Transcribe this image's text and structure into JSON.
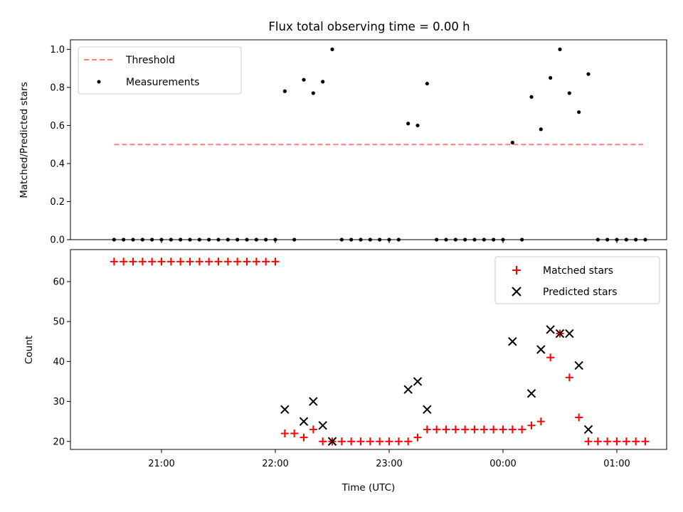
{
  "chart_data": {
    "type": "scatter",
    "title": "Flux total observing time = 0.00 h",
    "xlabel": "Time (UTC)",
    "x_tick_labels": [
      "21:00",
      "22:00",
      "23:00",
      "00:00",
      "01:00"
    ],
    "top": {
      "ylabel": "Matched/Predicted stars",
      "ylim": [
        0,
        1.05
      ],
      "y_tick_labels": [
        "0.0",
        "0.2",
        "0.4",
        "0.6",
        "0.8",
        "1.0"
      ],
      "legend_position": "upper-left",
      "threshold": {
        "name": "Threshold",
        "value": 0.5,
        "color": "#ff7f7f"
      },
      "measurements": {
        "name": "Measurements",
        "color": "#000000",
        "points": [
          [
            "20:35",
            0
          ],
          [
            "20:40",
            0
          ],
          [
            "20:45",
            0
          ],
          [
            "20:50",
            0
          ],
          [
            "20:55",
            0
          ],
          [
            "21:00",
            0
          ],
          [
            "21:05",
            0
          ],
          [
            "21:10",
            0
          ],
          [
            "21:15",
            0
          ],
          [
            "21:20",
            0
          ],
          [
            "21:25",
            0
          ],
          [
            "21:30",
            0
          ],
          [
            "21:35",
            0
          ],
          [
            "21:40",
            0
          ],
          [
            "21:45",
            0
          ],
          [
            "21:50",
            0
          ],
          [
            "21:55",
            0
          ],
          [
            "22:00",
            0
          ],
          [
            "22:05",
            0.78
          ],
          [
            "22:10",
            0
          ],
          [
            "22:15",
            0.84
          ],
          [
            "22:20",
            0.77
          ],
          [
            "22:25",
            0.83
          ],
          [
            "22:30",
            1.0
          ],
          [
            "22:35",
            0
          ],
          [
            "22:40",
            0
          ],
          [
            "22:45",
            0
          ],
          [
            "22:50",
            0
          ],
          [
            "22:55",
            0
          ],
          [
            "23:00",
            0
          ],
          [
            "23:05",
            0
          ],
          [
            "23:10",
            0.61
          ],
          [
            "23:15",
            0.6
          ],
          [
            "23:20",
            0.82
          ],
          [
            "23:25",
            0
          ],
          [
            "23:30",
            0
          ],
          [
            "23:35",
            0
          ],
          [
            "23:40",
            0
          ],
          [
            "23:45",
            0
          ],
          [
            "23:50",
            0
          ],
          [
            "23:55",
            0
          ],
          [
            "24:00",
            0
          ],
          [
            "24:05",
            0.51
          ],
          [
            "24:10",
            0
          ],
          [
            "24:15",
            0.75
          ],
          [
            "24:20",
            0.58
          ],
          [
            "24:25",
            0.85
          ],
          [
            "24:30",
            1.0
          ],
          [
            "24:35",
            0.77
          ],
          [
            "24:40",
            0.67
          ],
          [
            "24:45",
            0.87
          ],
          [
            "24:50",
            0
          ],
          [
            "24:55",
            0
          ],
          [
            "25:00",
            0
          ],
          [
            "25:05",
            0
          ],
          [
            "25:10",
            0
          ],
          [
            "25:15",
            0
          ]
        ]
      }
    },
    "bottom": {
      "ylabel": "Count",
      "ylim": [
        18,
        68
      ],
      "y_tick_labels": [
        "20",
        "30",
        "40",
        "50",
        "60"
      ],
      "legend_position": "upper-right",
      "series": [
        {
          "name": "Matched stars",
          "marker": "plus",
          "color": "#ff0000",
          "points": [
            [
              "20:35",
              65
            ],
            [
              "20:40",
              65
            ],
            [
              "20:45",
              65
            ],
            [
              "20:50",
              65
            ],
            [
              "20:55",
              65
            ],
            [
              "21:00",
              65
            ],
            [
              "21:05",
              65
            ],
            [
              "21:10",
              65
            ],
            [
              "21:15",
              65
            ],
            [
              "21:20",
              65
            ],
            [
              "21:25",
              65
            ],
            [
              "21:30",
              65
            ],
            [
              "21:35",
              65
            ],
            [
              "21:40",
              65
            ],
            [
              "21:45",
              65
            ],
            [
              "21:50",
              65
            ],
            [
              "21:55",
              65
            ],
            [
              "22:00",
              65
            ],
            [
              "22:05",
              22
            ],
            [
              "22:10",
              22
            ],
            [
              "22:15",
              21
            ],
            [
              "22:20",
              23
            ],
            [
              "22:25",
              20
            ],
            [
              "22:30",
              20
            ],
            [
              "22:35",
              20
            ],
            [
              "22:40",
              20
            ],
            [
              "22:45",
              20
            ],
            [
              "22:50",
              20
            ],
            [
              "22:55",
              20
            ],
            [
              "23:00",
              20
            ],
            [
              "23:05",
              20
            ],
            [
              "23:10",
              20
            ],
            [
              "23:15",
              21
            ],
            [
              "23:20",
              23
            ],
            [
              "23:25",
              23
            ],
            [
              "23:30",
              23
            ],
            [
              "23:35",
              23
            ],
            [
              "23:40",
              23
            ],
            [
              "23:45",
              23
            ],
            [
              "23:50",
              23
            ],
            [
              "23:55",
              23
            ],
            [
              "24:00",
              23
            ],
            [
              "24:05",
              23
            ],
            [
              "24:10",
              23
            ],
            [
              "24:15",
              24
            ],
            [
              "24:20",
              25
            ],
            [
              "24:25",
              41
            ],
            [
              "24:30",
              47
            ],
            [
              "24:35",
              36
            ],
            [
              "24:40",
              26
            ],
            [
              "24:45",
              20
            ],
            [
              "24:50",
              20
            ],
            [
              "24:55",
              20
            ],
            [
              "25:00",
              20
            ],
            [
              "25:05",
              20
            ],
            [
              "25:10",
              20
            ],
            [
              "25:15",
              20
            ]
          ]
        },
        {
          "name": "Predicted stars",
          "marker": "x",
          "color": "#000000",
          "points": [
            [
              "22:05",
              28
            ],
            [
              "22:15",
              25
            ],
            [
              "22:20",
              30
            ],
            [
              "22:25",
              24
            ],
            [
              "22:30",
              20
            ],
            [
              "23:10",
              33
            ],
            [
              "23:15",
              35
            ],
            [
              "23:20",
              28
            ],
            [
              "24:05",
              45
            ],
            [
              "24:15",
              32
            ],
            [
              "24:20",
              43
            ],
            [
              "24:25",
              48
            ],
            [
              "24:30",
              47
            ],
            [
              "24:35",
              47
            ],
            [
              "24:40",
              39
            ],
            [
              "24:45",
              23
            ]
          ]
        }
      ]
    }
  }
}
